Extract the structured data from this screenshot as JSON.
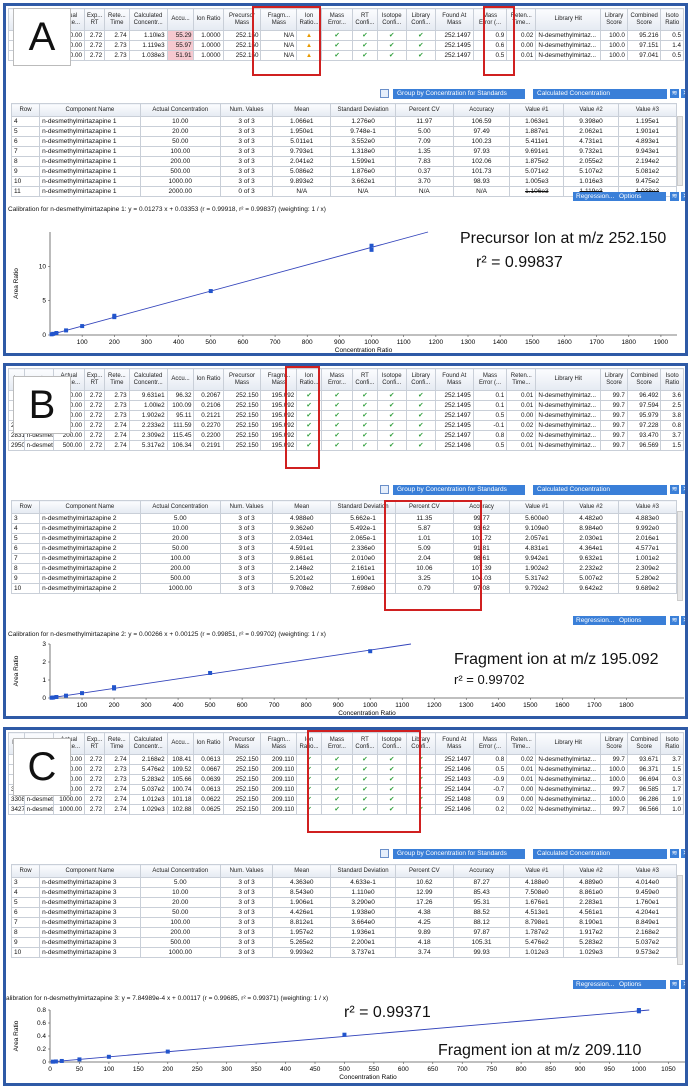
{
  "panelA": {
    "label": "A",
    "top_headers": [
      "In",
      "ent",
      "Actual Conce...",
      "Exp... RT",
      "Rete... Time",
      "Calculated Concentr...",
      "Accu...",
      "Ion Ratio",
      "Precursor Mass",
      "Fragm... Mass",
      "Ion Ratio...",
      "Mass Error...",
      "RT Confi...",
      "Isotope Confi...",
      "Library Confi...",
      "Found At Mass",
      "Mass Error (...",
      "Reten... Time...",
      "Library Hit",
      "Library Score",
      "Combined Score",
      "Isoto Ratio"
    ],
    "top_rows": [
      [
        "",
        "ethy...",
        "2000.00",
        "2.72",
        "2.74",
        "1.10le3",
        "55.29",
        "1.0000",
        "252.150",
        "N/A",
        "warn",
        "ok",
        "ok",
        "ok",
        "ok",
        "252.1497",
        "0.9",
        "0.02",
        "N-desmethylmirtaz...",
        "100.0",
        "95.216",
        "0.5"
      ],
      [
        "",
        "ethy...",
        "2000.00",
        "2.72",
        "2.73",
        "1.119e3",
        "55.97",
        "1.0000",
        "252.150",
        "N/A",
        "warn",
        "ok",
        "ok",
        "ok",
        "ok",
        "252.1495",
        "0.6",
        "0.00",
        "N-desmethylmirtaz...",
        "100.0",
        "97.151",
        "1.4"
      ],
      [
        "",
        "ethy...",
        "2000.00",
        "2.72",
        "2.73",
        "1.038e3",
        "51.91",
        "1.0000",
        "252.150",
        "N/A",
        "warn",
        "ok",
        "ok",
        "ok",
        "ok",
        "252.1497",
        "0.5",
        "0.01",
        "N-desmethylmirtaz...",
        "100.0",
        "97.041",
        "0.5"
      ]
    ],
    "group_by": "Group by Concentration for Standards",
    "calc_conc": "Calculated Concentration",
    "stats_headers": [
      "Row",
      "Component Name",
      "Actual Concentration",
      "Num. Values",
      "Mean",
      "Standard Deviation",
      "Percent CV",
      "Accuracy",
      "Value #1",
      "Value #2",
      "Value #3"
    ],
    "stats_rows": [
      [
        "4",
        "n-desmethylmirtazapine 1",
        "10.00",
        "3 of 3",
        "1.066e1",
        "1.276e0",
        "11.97",
        "106.59",
        "1.063e1",
        "9.398e0",
        "1.195e1"
      ],
      [
        "5",
        "n-desmethylmirtazapine 1",
        "20.00",
        "3 of 3",
        "1.950e1",
        "9.748e-1",
        "5.00",
        "97.49",
        "1.887e1",
        "2.062e1",
        "1.901e1"
      ],
      [
        "6",
        "n-desmethylmirtazapine 1",
        "50.00",
        "3 of 3",
        "5.011e1",
        "3.552e0",
        "7.09",
        "100.23",
        "5.411e1",
        "4.731e1",
        "4.893e1"
      ],
      [
        "7",
        "n-desmethylmirtazapine 1",
        "100.00",
        "3 of 3",
        "9.793e1",
        "1.318e0",
        "1.35",
        "97.93",
        "9.691e1",
        "9.732e1",
        "9.943e1"
      ],
      [
        "8",
        "n-desmethylmirtazapine 1",
        "200.00",
        "3 of 3",
        "2.041e2",
        "1.599e1",
        "7.83",
        "102.06",
        "1.875e2",
        "2.055e2",
        "2.194e2"
      ],
      [
        "9",
        "n-desmethylmirtazapine 1",
        "500.00",
        "3 of 3",
        "5.086e2",
        "1.876e0",
        "0.37",
        "101.73",
        "5.071e2",
        "5.107e2",
        "5.081e2"
      ],
      [
        "10",
        "n-desmethylmirtazapine 1",
        "1000.00",
        "3 of 3",
        "9.893e2",
        "3.662e1",
        "3.70",
        "98.93",
        "1.005e3",
        "1.016e3",
        "9.475e2"
      ],
      [
        "11",
        "n-desmethylmirtazapine 1",
        "2000.00",
        "0 of 3",
        "N/A",
        "N/A",
        "N/A",
        "N/A",
        "1.106e3",
        "1.119e3",
        "1.038e3"
      ]
    ],
    "regression": "Regression...",
    "options": "Options",
    "calib": "Calibration for n-desmethylmirtazapine 1: y = 0.01273 x + 0.03353 (r = 0.99918, r² = 0.99837)  (weighting: 1 / x)",
    "ylabel": "Area Ratio",
    "xlabel": "Concentration Ratio",
    "annotation": "Precursor Ion at m/z 252.150",
    "r2": "r² = 0.99837"
  },
  "panelB": {
    "label": "B",
    "top_headers": [
      "In",
      "ent",
      "Actual Conce...",
      "Exp... RT",
      "Rete... Time",
      "Calculated Concentr...",
      "Accu...",
      "Ion Ratio",
      "Precursor Mass",
      "Fragm... Mass",
      "Ion Ratio...",
      "Mass Error...",
      "RT Confi...",
      "Isotope Confi...",
      "Library Confi...",
      "Found At Mass",
      "Mass Error (...",
      "Reten... Time...",
      "Library Hit",
      "Library Score",
      "Combined Score",
      "Isoto Ratio"
    ],
    "top_rows": [
      [
        "",
        "ethy...",
        "100.00",
        "2.72",
        "2.73",
        "9.631e1",
        "96.32",
        "0.2067",
        "252.150",
        "195.092",
        "ok",
        "ok",
        "ok",
        "ok",
        "ok",
        "252.1495",
        "0.1",
        "0.01",
        "N-desmethylmirtaz...",
        "99.7",
        "96.492",
        "3.6"
      ],
      [
        "",
        "ethy...",
        "100.00",
        "2.72",
        "2.73",
        "1.00le2",
        "100.09",
        "0.2106",
        "252.150",
        "195.092",
        "ok",
        "ok",
        "ok",
        "ok",
        "ok",
        "252.1495",
        "0.1",
        "0.01",
        "N-desmethylmirtaz...",
        "99.7",
        "97.594",
        "2.5"
      ],
      [
        "",
        "ethy...",
        "200.00",
        "2.72",
        "2.73",
        "1.902e2",
        "95.11",
        "0.2121",
        "252.150",
        "195.092",
        "ok",
        "ok",
        "ok",
        "ok",
        "ok",
        "252.1497",
        "0.5",
        "0.00",
        "N-desmethylmirtaz...",
        "99.7",
        "95.979",
        "3.8"
      ],
      [
        "2712",
        "n-desmethy...",
        "200.00",
        "2.72",
        "2.74",
        "2.233e2",
        "111.59",
        "0.2270",
        "252.150",
        "195.092",
        "ok",
        "ok",
        "ok",
        "ok",
        "ok",
        "252.1495",
        "-0.1",
        "0.02",
        "N-desmethylmirtaz...",
        "99.7",
        "97.228",
        "0.8"
      ],
      [
        "2831",
        "n-desmethy...",
        "200.00",
        "2.72",
        "2.74",
        "2.309e2",
        "115.45",
        "0.2200",
        "252.150",
        "195.092",
        "ok",
        "ok",
        "ok",
        "ok",
        "ok",
        "252.1497",
        "0.8",
        "0.02",
        "N-desmethylmirtaz...",
        "99.7",
        "93.470",
        "3.7"
      ],
      [
        "2950",
        "n-desmethy...",
        "500.00",
        "2.72",
        "2.74",
        "5.317e2",
        "106.34",
        "0.2191",
        "252.150",
        "195.092",
        "ok",
        "ok",
        "ok",
        "ok",
        "ok",
        "252.1496",
        "0.5",
        "0.01",
        "N-desmethylmirtaz...",
        "99.7",
        "96.569",
        "1.5"
      ]
    ],
    "group_by": "Group by Concentration for Standards",
    "calc_conc": "Calculated Concentration",
    "stats_headers": [
      "Row",
      "Component Name",
      "Actual Concentration",
      "Num. Values",
      "Mean",
      "Standard Deviation",
      "Percent CV",
      "Accuracy",
      "Value #1",
      "Value #2",
      "Value #3"
    ],
    "stats_rows": [
      [
        "3",
        "n-desmethylmirtazapine 2",
        "5.00",
        "3 of 3",
        "4.988e0",
        "5.662e-1",
        "11.35",
        "99.77",
        "5.600e0",
        "4.482e0",
        "4.883e0"
      ],
      [
        "4",
        "n-desmethylmirtazapine 2",
        "10.00",
        "3 of 3",
        "9.362e0",
        "5.492e-1",
        "5.87",
        "93.62",
        "9.109e0",
        "8.984e0",
        "9.992e0"
      ],
      [
        "5",
        "n-desmethylmirtazapine 2",
        "20.00",
        "3 of 3",
        "2.034e1",
        "2.065e-1",
        "1.01",
        "101.72",
        "2.057e1",
        "2.030e1",
        "2.016e1"
      ],
      [
        "6",
        "n-desmethylmirtazapine 2",
        "50.00",
        "3 of 3",
        "4.591e1",
        "2.336e0",
        "5.09",
        "91.81",
        "4.831e1",
        "4.364e1",
        "4.577e1"
      ],
      [
        "7",
        "n-desmethylmirtazapine 2",
        "100.00",
        "3 of 3",
        "9.861e1",
        "2.010e0",
        "2.04",
        "98.61",
        "9.942e1",
        "9.632e1",
        "1.001e2"
      ],
      [
        "8",
        "n-desmethylmirtazapine 2",
        "200.00",
        "3 of 3",
        "2.148e2",
        "2.161e1",
        "10.06",
        "107.39",
        "1.902e2",
        "2.232e2",
        "2.309e2"
      ],
      [
        "9",
        "n-desmethylmirtazapine 2",
        "500.00",
        "3 of 3",
        "5.201e2",
        "1.690e1",
        "3.25",
        "104.03",
        "5.317e2",
        "5.007e2",
        "5.280e2"
      ],
      [
        "10",
        "n-desmethylmirtazapine 2",
        "1000.00",
        "3 of 3",
        "9.708e2",
        "7.698e0",
        "0.79",
        "97.08",
        "9.792e2",
        "9.642e2",
        "9.689e2"
      ]
    ],
    "regression": "Regression...",
    "options": "Options",
    "calib": "Calibration for n-desmethylmirtazapine 2: y = 0.00266 x + 0.00125 (r = 0.99851, r² = 0.99702)  (weighting: 1 / x)",
    "ylabel": "Area Ratio",
    "xlabel": "Concentration Ratio",
    "annotation": "Fragment ion at m/z 195.092",
    "r2": "r² = 0.99702"
  },
  "panelC": {
    "label": "C",
    "top_headers": [
      "Ind",
      "ent",
      "Actual Conce...",
      "Exp... RT",
      "Rete... Time",
      "Calculated Concentr...",
      "Accu...",
      "Ion Ratio",
      "Precursor Mass",
      "Fragm... Mass",
      "Ion Ratio...",
      "Mass Error...",
      "RT Confi...",
      "Isotope Confi...",
      "Library Confi...",
      "Found At Mass",
      "Mass Error (...",
      "Reten... Time...",
      "Library Hit",
      "Library Score",
      "Combined Score",
      "Isoto Ratio"
    ],
    "top_rows": [
      [
        "",
        "ethy...",
        "200.00",
        "2.72",
        "2.74",
        "2.168e2",
        "108.41",
        "0.0613",
        "252.150",
        "209.110",
        "ok",
        "ok",
        "ok",
        "ok",
        "ok",
        "252.1497",
        "0.8",
        "0.02",
        "N-desmethylmirtaz...",
        "99.7",
        "93.671",
        "3.7"
      ],
      [
        "",
        "ethy...",
        "500.00",
        "2.72",
        "2.73",
        "5.476e2",
        "109.52",
        "0.0667",
        "252.150",
        "209.110",
        "ok",
        "ok",
        "ok",
        "ok",
        "ok",
        "252.1496",
        "0.5",
        "0.01",
        "N-desmethylmirtaz...",
        "100.0",
        "96.371",
        "1.5"
      ],
      [
        "",
        "ethy...",
        "500.00",
        "2.72",
        "2.73",
        "5.283e2",
        "105.66",
        "0.0639",
        "252.150",
        "209.110",
        "ok",
        "ok",
        "ok",
        "ok",
        "ok",
        "252.1493",
        "-0.9",
        "0.01",
        "N-desmethylmirtaz...",
        "100.0",
        "96.694",
        "0.3"
      ],
      [
        "3189",
        "n-desmeth...",
        "500.00",
        "2.72",
        "2.74",
        "5.037e2",
        "100.74",
        "0.0613",
        "252.150",
        "209.110",
        "ok",
        "ok",
        "ok",
        "ok",
        "ok",
        "252.1494",
        "-0.7",
        "0.00",
        "N-desmethylmirtaz...",
        "99.7",
        "96.585",
        "1.7"
      ],
      [
        "3308",
        "n-desmeth...",
        "1000.00",
        "2.72",
        "2.74",
        "1.012e3",
        "101.18",
        "0.0622",
        "252.150",
        "209.110",
        "ok",
        "ok",
        "ok",
        "ok",
        "ok",
        "252.1498",
        "0.9",
        "0.00",
        "N-desmethylmirtaz...",
        "100.0",
        "96.286",
        "1.9"
      ],
      [
        "3427",
        "n-desmeth...",
        "1000.00",
        "2.72",
        "2.74",
        "1.029e3",
        "102.88",
        "0.0625",
        "252.150",
        "209.110",
        "ok",
        "ok",
        "ok",
        "ok",
        "ok",
        "252.1496",
        "0.2",
        "0.02",
        "N-desmethylmirtaz...",
        "99.7",
        "96.566",
        "1.0"
      ]
    ],
    "group_by": "Group by Concentration for Standards",
    "calc_conc": "Calculated Concentration",
    "stats_headers": [
      "Row",
      "Component Name",
      "Actual Concentration",
      "Num. Values",
      "Mean",
      "Standard Deviation",
      "Percent CV",
      "Accuracy",
      "Value #1",
      "Value #2",
      "Value #3"
    ],
    "stats_rows": [
      [
        "3",
        "n-desmethylmirtazapine 3",
        "5.00",
        "3 of 3",
        "4.363e0",
        "4.633e-1",
        "10.62",
        "87.27",
        "4.188e0",
        "4.889e0",
        "4.014e0"
      ],
      [
        "4",
        "n-desmethylmirtazapine 3",
        "10.00",
        "3 of 3",
        "8.543e0",
        "1.110e0",
        "12.99",
        "85.43",
        "7.508e0",
        "8.861e0",
        "9.459e0"
      ],
      [
        "5",
        "n-desmethylmirtazapine 3",
        "20.00",
        "3 of 3",
        "1.906e1",
        "3.290e0",
        "17.26",
        "95.31",
        "1.676e1",
        "2.283e1",
        "1.760e1"
      ],
      [
        "6",
        "n-desmethylmirtazapine 3",
        "50.00",
        "3 of 3",
        "4.426e1",
        "1.938e0",
        "4.38",
        "88.52",
        "4.513e1",
        "4.561e1",
        "4.204e1"
      ],
      [
        "7",
        "n-desmethylmirtazapine 3",
        "100.00",
        "3 of 3",
        "8.812e1",
        "3.664e0",
        "4.25",
        "88.12",
        "8.798e1",
        "8.190e1",
        "8.849e1"
      ],
      [
        "8",
        "n-desmethylmirtazapine 3",
        "200.00",
        "3 of 3",
        "1.957e2",
        "1.936e1",
        "9.89",
        "97.87",
        "1.787e2",
        "1.917e2",
        "2.168e2"
      ],
      [
        "9",
        "n-desmethylmirtazapine 3",
        "500.00",
        "3 of 3",
        "5.265e2",
        "2.200e1",
        "4.18",
        "105.31",
        "5.476e2",
        "5.283e2",
        "5.037e2"
      ],
      [
        "10",
        "n-desmethylmirtazapine 3",
        "1000.00",
        "3 of 3",
        "9.993e2",
        "3.737e1",
        "3.74",
        "99.93",
        "1.012e3",
        "1.029e3",
        "9.573e2"
      ]
    ],
    "regression": "Regression...",
    "options": "Options",
    "calib": "alibration for n-desmethylmirtazapine 3: y = 7.84989e-4 x + 0.00117 (r = 0.99685, r² = 0.99371)  (weighting: 1 / x)",
    "ylabel": "Area Ratio",
    "xlabel": "Concentration Ratio",
    "annotation": "Fragment ion at m/z 209.110",
    "r2": "r² = 0.99371"
  },
  "colors": {
    "frame": "#2f5aa6",
    "highlight": "#d02020",
    "check": "#2e9e3a",
    "warn": "#e79a00",
    "pink": "#f6c9d0",
    "line": "#3344bb",
    "point": "#2255cc",
    "button": "#3a7fd8"
  },
  "chart_data": [
    {
      "type": "scatter",
      "panel": "A",
      "xlim": [
        0,
        1950
      ],
      "ylim": [
        0,
        15
      ],
      "xticks": [
        "100",
        "200",
        "300",
        "400",
        "500",
        "600",
        "700",
        "800",
        "900",
        "1000",
        "1100",
        "1200",
        "1300",
        "1400",
        "1500",
        "1600",
        "1700",
        "1800",
        "1900"
      ],
      "yticks": [
        "0",
        "5",
        "10"
      ],
      "x": [
        5,
        10,
        20,
        50,
        100,
        200,
        200,
        500,
        1000,
        1000
      ],
      "y": [
        0.1,
        0.17,
        0.29,
        0.67,
        1.3,
        2.6,
        2.8,
        6.4,
        12.4,
        13.0
      ],
      "fit": {
        "slope": 0.01273,
        "intercept": 0.03353
      }
    },
    {
      "type": "scatter",
      "panel": "B",
      "xlim": [
        0,
        1980
      ],
      "ylim": [
        0,
        3
      ],
      "xticks": [
        "100",
        "200",
        "300",
        "400",
        "500",
        "600",
        "700",
        "800",
        "900",
        "1000",
        "1100",
        "1200",
        "1300",
        "1400",
        "1500",
        "1600",
        "1700",
        "1800"
      ],
      "yticks": [
        "0",
        "1",
        "2",
        "3"
      ],
      "x": [
        5,
        10,
        20,
        50,
        100,
        200,
        200,
        500,
        1000
      ],
      "y": [
        0.014,
        0.027,
        0.055,
        0.13,
        0.27,
        0.53,
        0.6,
        1.39,
        2.6
      ],
      "fit": {
        "slope": 0.00266,
        "intercept": 0.00125
      }
    },
    {
      "type": "scatter",
      "panel": "C",
      "xlim": [
        0,
        1080
      ],
      "ylim": [
        0,
        0.8
      ],
      "xticks": [
        "0",
        "50",
        "100",
        "150",
        "200",
        "250",
        "300",
        "350",
        "400",
        "450",
        "500",
        "550",
        "600",
        "650",
        "700",
        "750",
        "800",
        "850",
        "900",
        "950",
        "1000",
        "1050"
      ],
      "yticks": [
        "0",
        "0.2",
        "0.4",
        "0.6",
        "0.8"
      ],
      "x": [
        5,
        10,
        20,
        50,
        100,
        200,
        500,
        1000,
        1000
      ],
      "y": [
        0.005,
        0.008,
        0.016,
        0.04,
        0.08,
        0.16,
        0.42,
        0.78,
        0.8
      ],
      "fit": {
        "slope": 0.000784989,
        "intercept": 0.00117
      }
    }
  ]
}
